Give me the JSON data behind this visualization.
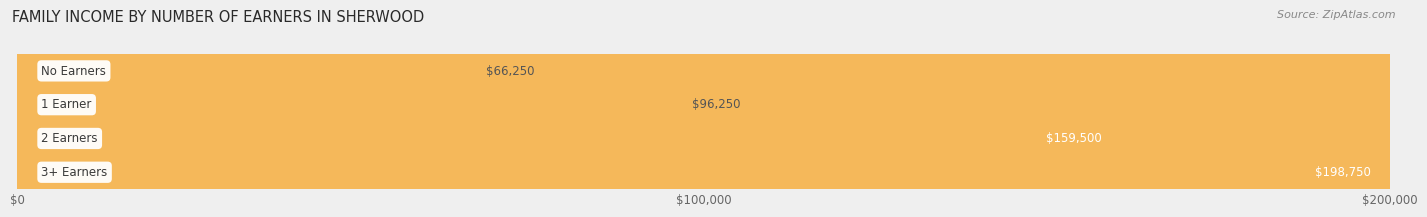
{
  "title": "FAMILY INCOME BY NUMBER OF EARNERS IN SHERWOOD",
  "source": "Source: ZipAtlas.com",
  "categories": [
    "No Earners",
    "1 Earner",
    "2 Earners",
    "3+ Earners"
  ],
  "values": [
    66250,
    96250,
    159500,
    198750
  ],
  "bar_colors": [
    "#72ccc8",
    "#a9a8d4",
    "#f07caa",
    "#f5b85a"
  ],
  "xmax": 200000,
  "xticks": [
    0,
    100000,
    200000
  ],
  "xtick_labels": [
    "$0",
    "$100,000",
    "$200,000"
  ],
  "value_labels": [
    "$66,250",
    "$96,250",
    "$159,500",
    "$198,750"
  ],
  "background_color": "#efefef",
  "bar_background": "#e3e3e3",
  "title_fontsize": 10.5,
  "source_fontsize": 8,
  "bar_label_fontsize": 8.5,
  "value_label_fontsize": 8.5
}
